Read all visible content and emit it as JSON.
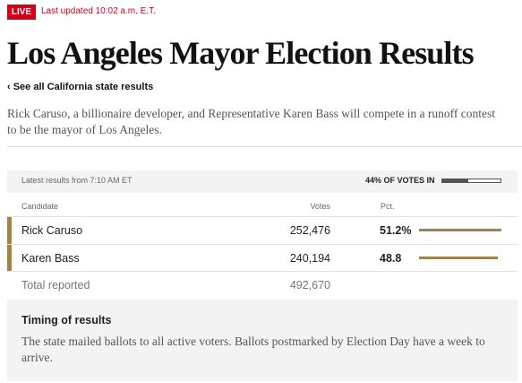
{
  "header": {
    "live": "LIVE",
    "updated": "Last updated 10:02 a.m. E.T.",
    "title": "Los Angeles Mayor Election Results",
    "back_link": "‹ See all California state results",
    "summary": "Rick Caruso, a billionaire developer, and Representative Karen Bass will compete in a runoff contest to be the mayor of Los Angeles."
  },
  "results": {
    "latest": "Latest results from 7:10 AM ET",
    "votes_in": {
      "value": 44,
      "label": "44% OF VOTES IN"
    },
    "columns": [
      "Candidate",
      "Votes",
      "Pct."
    ],
    "rows": [
      {
        "name": "Rick Caruso",
        "votes": "252,476",
        "pct": {
          "value": 51.2,
          "label": "51.2%"
        }
      },
      {
        "name": "Karen Bass",
        "votes": "240,194",
        "pct": 48.8
      }
    ],
    "total": {
      "label": "Total reported",
      "votes": "492,670"
    }
  },
  "timing": {
    "title": "Timing of results",
    "text": "The state mailed ballots to all active voters. Ballots postmarked by Election Day have a week to arrive."
  }
}
